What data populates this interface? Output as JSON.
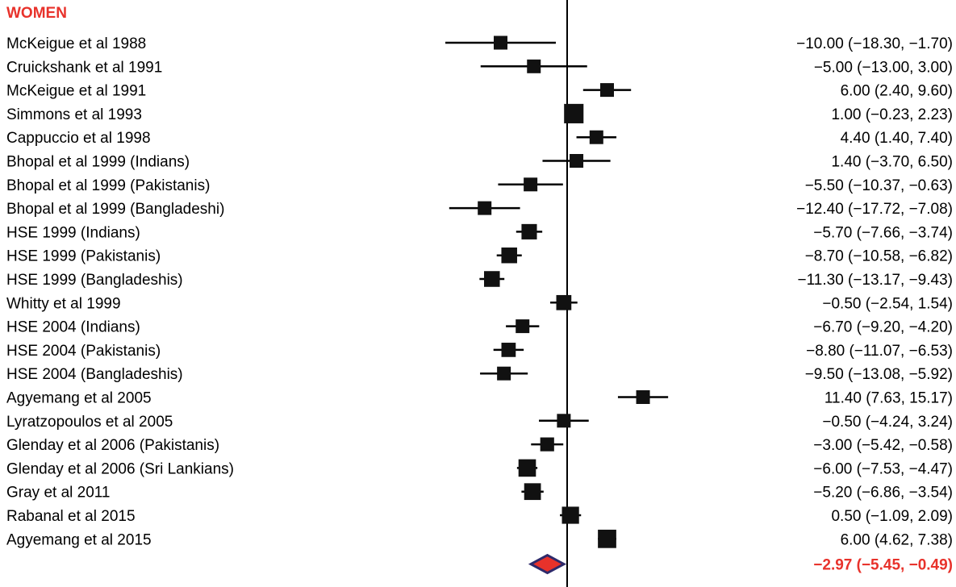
{
  "chart_data": {
    "type": "forest",
    "group_label": "WOMEN",
    "null_value": 0,
    "xlim": [
      -26,
      26
    ],
    "studies": [
      {
        "label": "McKeigue et al 1988",
        "estimate": -10.0,
        "lower": -18.3,
        "upper": -1.7,
        "ci_text": "−10.00 (−18.30, −1.70)"
      },
      {
        "label": "Cruickshank et al 1991",
        "estimate": -5.0,
        "lower": -13.0,
        "upper": 3.0,
        "ci_text": "−5.00 (−13.00, 3.00)"
      },
      {
        "label": "McKeigue et al 1991",
        "estimate": 6.0,
        "lower": 2.4,
        "upper": 9.6,
        "ci_text": "6.00 (2.40, 9.60)"
      },
      {
        "label": "Simmons et al 1993",
        "estimate": 1.0,
        "lower": -0.23,
        "upper": 2.23,
        "ci_text": "1.00 (−0.23, 2.23)"
      },
      {
        "label": "Cappuccio et al 1998",
        "estimate": 4.4,
        "lower": 1.4,
        "upper": 7.4,
        "ci_text": "4.40 (1.40, 7.40)"
      },
      {
        "label": "Bhopal et al 1999 (Indians)",
        "estimate": 1.4,
        "lower": -3.7,
        "upper": 6.5,
        "ci_text": "1.40 (−3.70, 6.50)"
      },
      {
        "label": "Bhopal et al 1999 (Pakistanis)",
        "estimate": -5.5,
        "lower": -10.37,
        "upper": -0.63,
        "ci_text": "−5.50 (−10.37, −0.63)"
      },
      {
        "label": "Bhopal et al 1999 (Bangladeshi)",
        "estimate": -12.4,
        "lower": -17.72,
        "upper": -7.08,
        "ci_text": "−12.40 (−17.72, −7.08)"
      },
      {
        "label": "HSE 1999 (Indians)",
        "estimate": -5.7,
        "lower": -7.66,
        "upper": -3.74,
        "ci_text": "−5.70 (−7.66, −3.74)"
      },
      {
        "label": "HSE 1999 (Pakistanis)",
        "estimate": -8.7,
        "lower": -10.58,
        "upper": -6.82,
        "ci_text": "−8.70 (−10.58, −6.82)"
      },
      {
        "label": "HSE 1999 (Bangladeshis)",
        "estimate": -11.3,
        "lower": -13.17,
        "upper": -9.43,
        "ci_text": "−11.30 (−13.17, −9.43)"
      },
      {
        "label": "Whitty et al 1999",
        "estimate": -0.5,
        "lower": -2.54,
        "upper": 1.54,
        "ci_text": "−0.50 (−2.54, 1.54)"
      },
      {
        "label": "HSE 2004 (Indians)",
        "estimate": -6.7,
        "lower": -9.2,
        "upper": -4.2,
        "ci_text": "−6.70 (−9.20, −4.20)"
      },
      {
        "label": "HSE 2004 (Pakistanis)",
        "estimate": -8.8,
        "lower": -11.07,
        "upper": -6.53,
        "ci_text": "−8.80 (−11.07, −6.53)"
      },
      {
        "label": "HSE 2004 (Bangladeshis)",
        "estimate": -9.5,
        "lower": -13.08,
        "upper": -5.92,
        "ci_text": "−9.50 (−13.08, −5.92)"
      },
      {
        "label": "Agyemang et al 2005",
        "estimate": 11.4,
        "lower": 7.63,
        "upper": 15.17,
        "ci_text": "11.40 (7.63, 15.17)"
      },
      {
        "label": "Lyratzopoulos et al 2005",
        "estimate": -0.5,
        "lower": -4.24,
        "upper": 3.24,
        "ci_text": "−0.50 (−4.24, 3.24)"
      },
      {
        "label": "Glenday et al 2006 (Pakistanis)",
        "estimate": -3.0,
        "lower": -5.42,
        "upper": -0.58,
        "ci_text": "−3.00 (−5.42, −0.58)"
      },
      {
        "label": "Glenday et al 2006 (Sri Lankians)",
        "estimate": -6.0,
        "lower": -7.53,
        "upper": -4.47,
        "ci_text": "−6.00 (−7.53, −4.47)"
      },
      {
        "label": "Gray et al 2011",
        "estimate": -5.2,
        "lower": -6.86,
        "upper": -3.54,
        "ci_text": "−5.20 (−6.86, −3.54)"
      },
      {
        "label": "Rabanal et al 2015",
        "estimate": 0.5,
        "lower": -1.09,
        "upper": 2.09,
        "ci_text": "0.50 (−1.09, 2.09)"
      },
      {
        "label": "Agyemang et al 2015",
        "estimate": 6.0,
        "lower": 4.62,
        "upper": 7.38,
        "ci_text": "6.00 (4.62, 7.38)"
      }
    ],
    "pooled": {
      "estimate": -2.97,
      "lower": -5.45,
      "upper": -0.49,
      "ci_text": "−2.97 (−5.45, −0.49)"
    }
  },
  "colors": {
    "group_label": "#e8322b",
    "pooled_text": "#e8322b",
    "diamond_fill": "#e8322b",
    "diamond_stroke": "#2e2a6b",
    "marker": "#111111",
    "line": "#000000"
  }
}
